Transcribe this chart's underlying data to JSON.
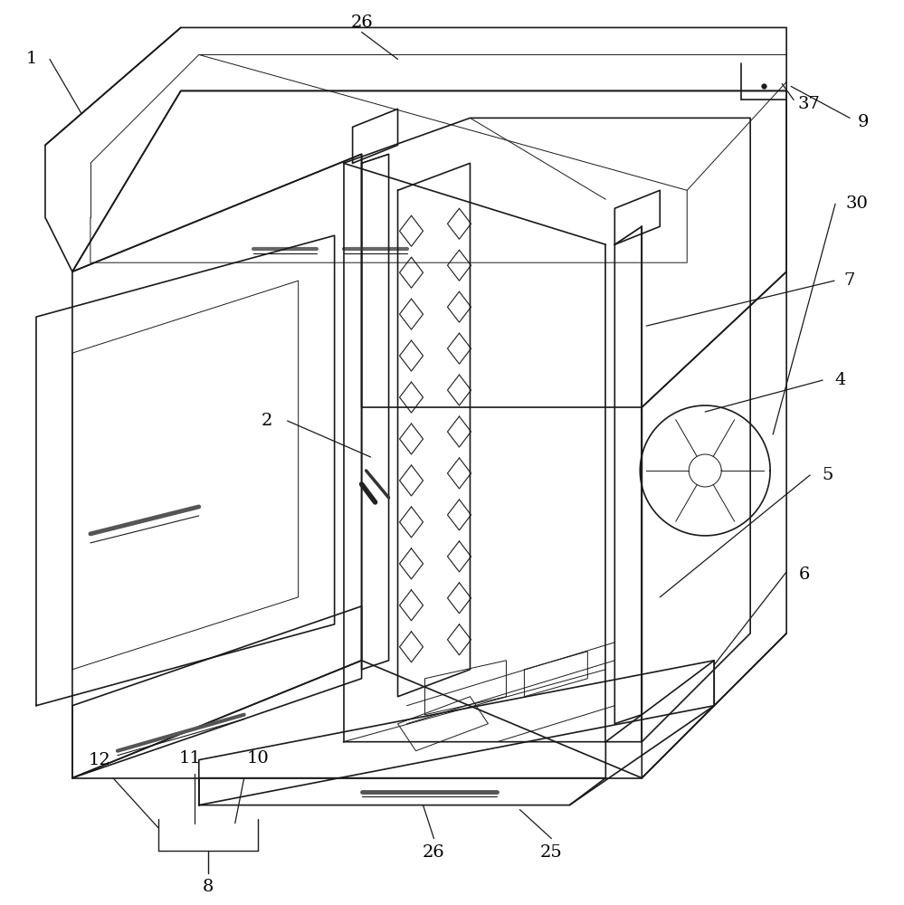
{
  "bg_color": "#ffffff",
  "line_color": "#1a1a1a",
  "line_width": 1.2,
  "thin_line": 0.7,
  "font_size": 14
}
